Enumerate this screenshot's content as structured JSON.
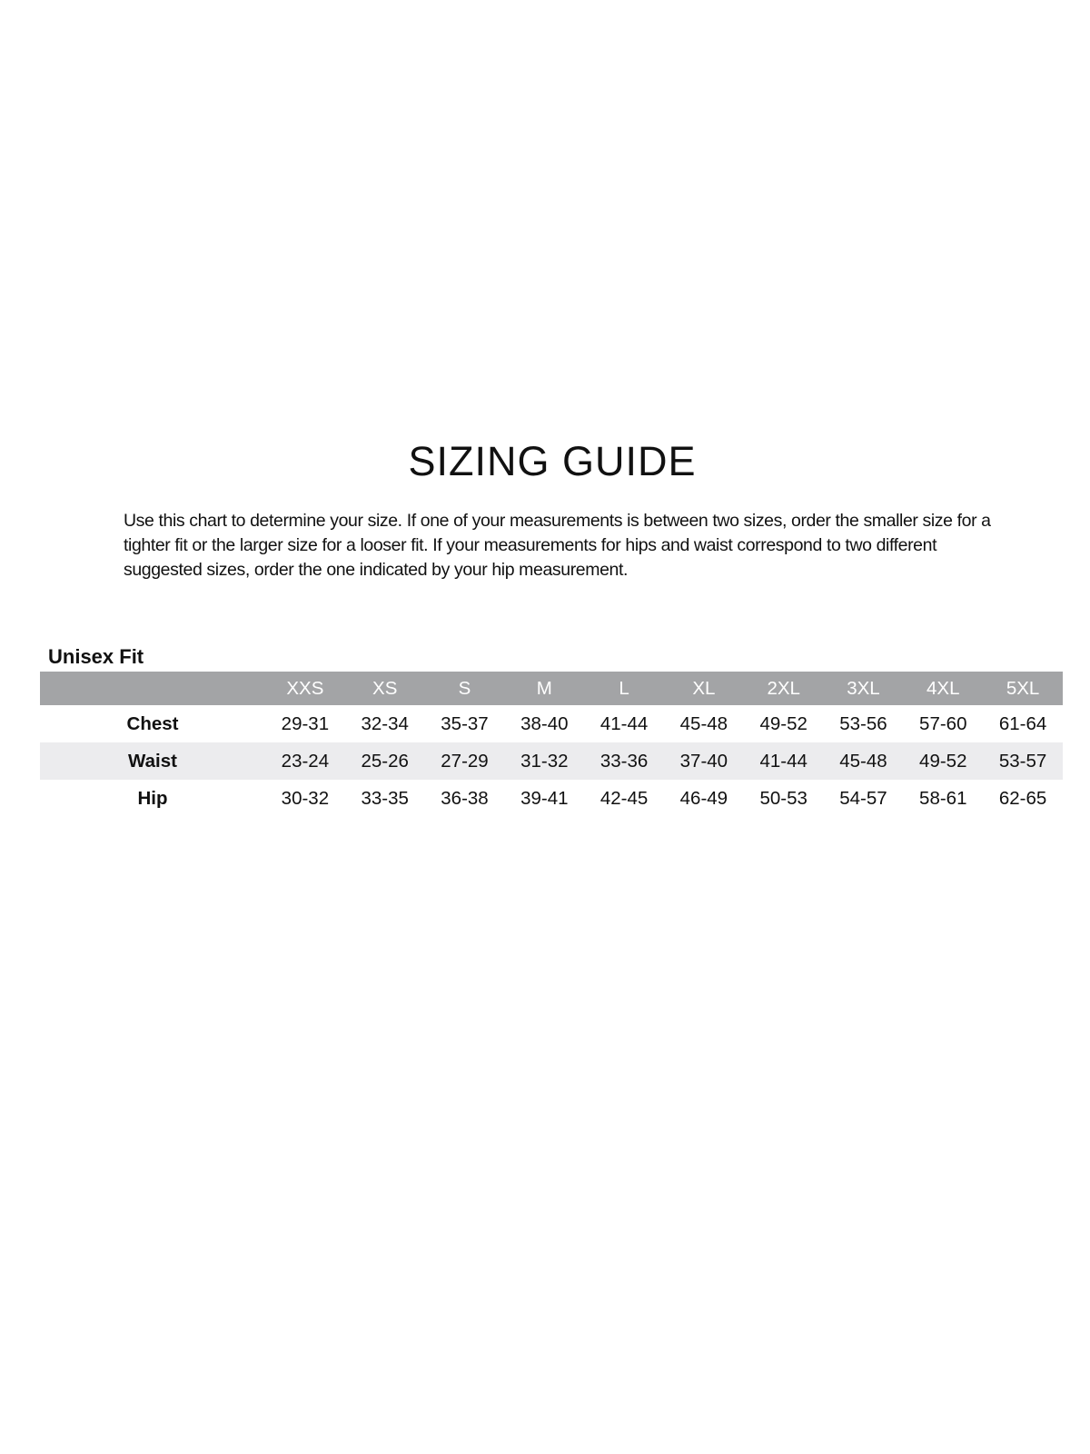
{
  "title": "SIZING GUIDE",
  "intro": "Use this chart to determine your size. If one of your measurements is between two sizes, order the smaller size for a tighter fit or the larger size for a looser fit. If your measurements for hips and waist correspond to two different suggested sizes, order the one indicated by your hip measurement.",
  "fit_label": "Unisex Fit",
  "colors": {
    "header_bg": "#a3a4a6",
    "stripe_bg": "#ececee"
  },
  "table": {
    "sizes": [
      "XXS",
      "XS",
      "S",
      "M",
      "L",
      "XL",
      "2XL",
      "3XL",
      "4XL",
      "5XL"
    ],
    "rows": [
      {
        "label": "Chest",
        "values": [
          "29-31",
          "32-34",
          "35-37",
          "38-40",
          "41-44",
          "45-48",
          "49-52",
          "53-56",
          "57-60",
          "61-64"
        ]
      },
      {
        "label": "Waist",
        "values": [
          "23-24",
          "25-26",
          "27-29",
          "31-32",
          "33-36",
          "37-40",
          "41-44",
          "45-48",
          "49-52",
          "53-57"
        ]
      },
      {
        "label": "Hip",
        "values": [
          "30-32",
          "33-35",
          "36-38",
          "39-41",
          "42-45",
          "46-49",
          "50-53",
          "54-57",
          "58-61",
          "62-65"
        ]
      }
    ]
  }
}
